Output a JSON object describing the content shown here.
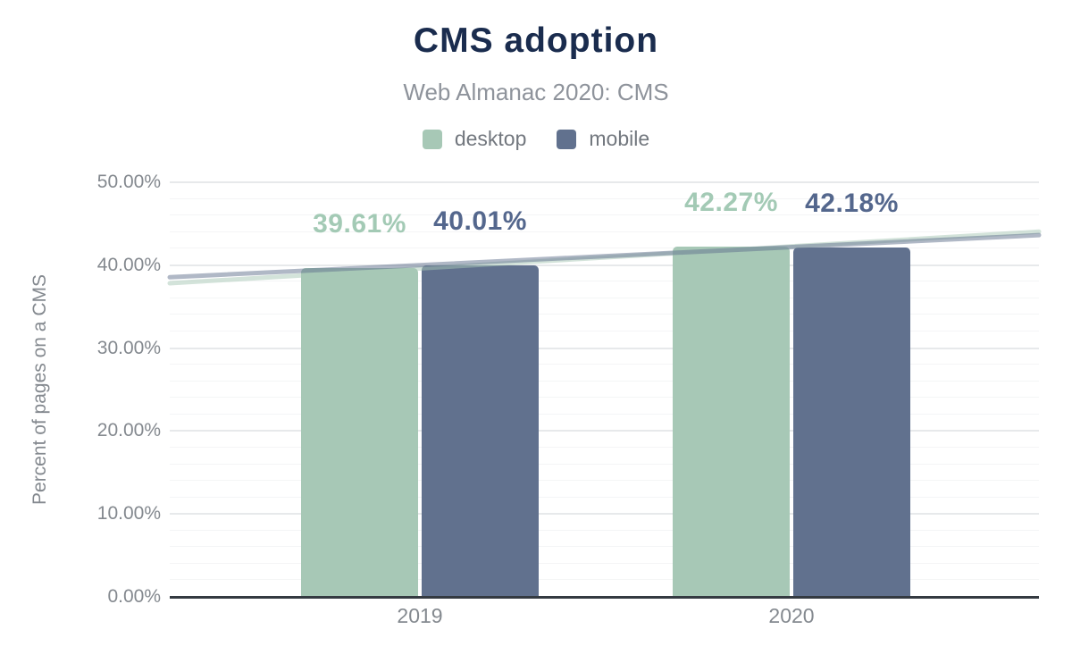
{
  "title": "CMS adoption",
  "subtitle": "Web Almanac 2020: CMS",
  "colors": {
    "background": "#ffffff",
    "title": "#1a2c4e",
    "subtitle": "#8e939b",
    "axis_text": "#84898f",
    "legend_text": "#72777e",
    "baseline": "#343a41",
    "grid_major": "#e7e9eb",
    "grid_minor": "#f4f5f6"
  },
  "chart_data": {
    "type": "bar",
    "title": "CMS adoption",
    "subtitle": "Web Almanac 2020: CMS",
    "categories": [
      "2019",
      "2020"
    ],
    "series": [
      {
        "name": "desktop",
        "color": "#a7c8b6",
        "label_color": "#a3cab5",
        "values": [
          39.61,
          42.27
        ]
      },
      {
        "name": "mobile",
        "color": "#61718e",
        "label_color": "#54678d",
        "values": [
          40.01,
          42.18
        ]
      }
    ],
    "value_labels": [
      [
        "39.61%",
        "42.27%"
      ],
      [
        "40.01%",
        "42.18%"
      ]
    ],
    "xlabel": "",
    "ylabel": "Percent of pages on a CMS",
    "ylim": [
      0,
      50
    ],
    "ytick_step": 10,
    "minor_tick_step": 2,
    "ytick_labels": [
      "0.00%",
      "10.00%",
      "20.00%",
      "30.00%",
      "40.00%",
      "50.00%"
    ],
    "grid": true,
    "legend_position": "top",
    "trendlines": true
  }
}
